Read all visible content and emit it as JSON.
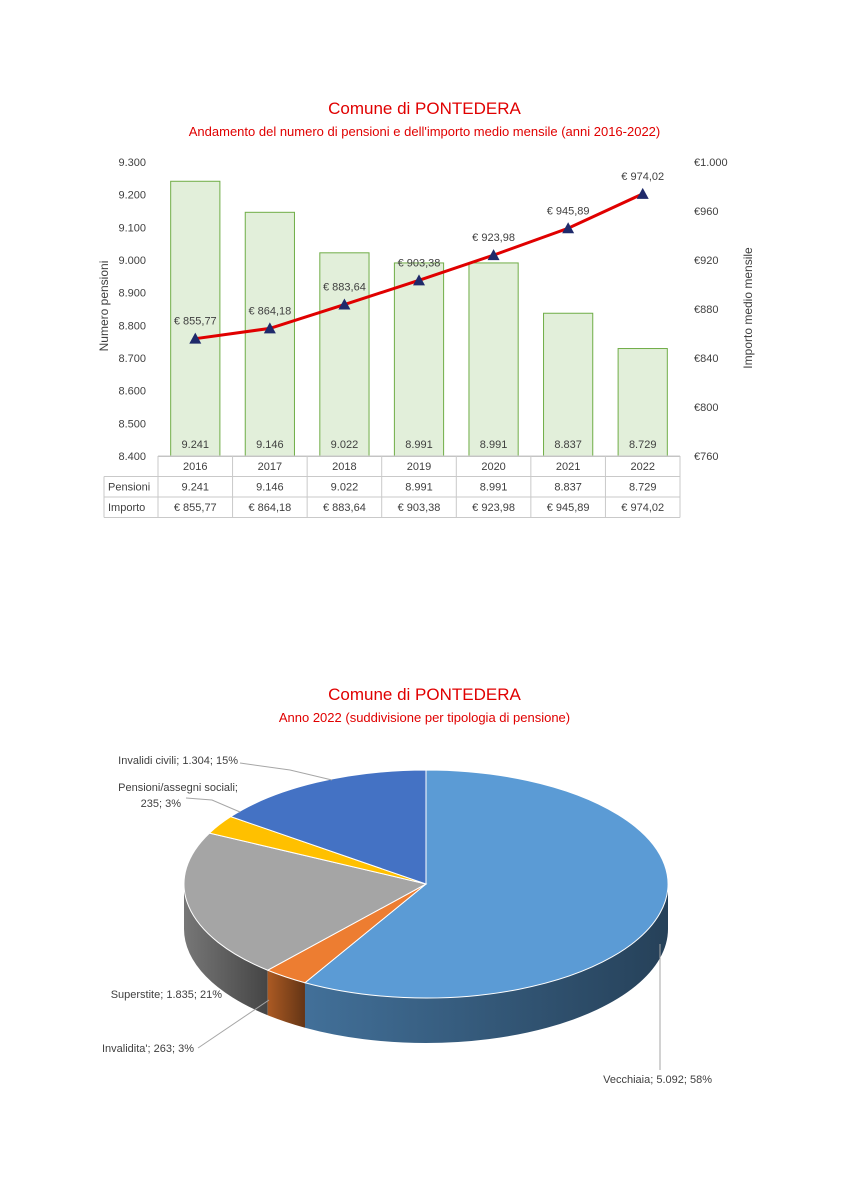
{
  "chart_data": [
    {
      "type": "bar",
      "title": "Comune di PONTEDERA",
      "subtitle": "Andamento del numero di pensioni e dell'importo medio mensile (anni 2016-2022)",
      "categories": [
        "2016",
        "2017",
        "2018",
        "2019",
        "2020",
        "2021",
        "2022"
      ],
      "ylabel": "Numero pensioni",
      "y2label": "Importo medio mensile",
      "ylim": [
        8400,
        9300
      ],
      "y2lim": [
        760,
        1000
      ],
      "yticks": [
        "8.400",
        "8.500",
        "8.600",
        "8.700",
        "8.800",
        "8.900",
        "9.000",
        "9.100",
        "9.200",
        "9.300"
      ],
      "y2ticks": [
        "€760",
        "€800",
        "€840",
        "€880",
        "€920",
        "€960",
        "€1.000"
      ],
      "grid": false,
      "legend": "data-table",
      "series": [
        {
          "name": "Pensioni",
          "type": "bar",
          "axis": "left",
          "values": [
            9241,
            9146,
            9022,
            8991,
            8991,
            8837,
            8729
          ],
          "labels": [
            "9.241",
            "9.146",
            "9.022",
            "8.991",
            "8.991",
            "8.837",
            "8.729"
          ],
          "fill": "#e2efda",
          "stroke": "#70ad47"
        },
        {
          "name": "Importo",
          "type": "line",
          "axis": "right",
          "values": [
            855.77,
            864.18,
            883.64,
            903.38,
            923.98,
            945.89,
            974.02
          ],
          "labels": [
            "€ 855,77",
            "€ 864,18",
            "€ 883,64",
            "€ 903,38",
            "€ 923,98",
            "€ 945,89",
            "€ 974,02"
          ],
          "line_color": "#e00000",
          "marker_color": "#1f2a6b"
        }
      ]
    },
    {
      "type": "pie",
      "title": "Comune di PONTEDERA",
      "subtitle": "Anno 2022 (suddivisione per tipologia di pensione)",
      "slices": [
        {
          "label": "Vecchiaia",
          "value": 5092,
          "percent": 58,
          "text": "Vecchiaia; 5.092; 58%",
          "color": "#5b9bd5"
        },
        {
          "label": "Invalidita'",
          "value": 263,
          "percent": 3,
          "text": "Invalidita'; 263; 3%",
          "color": "#ed7d31"
        },
        {
          "label": "Superstite",
          "value": 1835,
          "percent": 21,
          "text": "Superstite; 1.835; 21%",
          "color": "#a5a5a5"
        },
        {
          "label": "Pensioni/assegni sociali",
          "value": 235,
          "percent": 3,
          "text1": "Pensioni/assegni sociali;",
          "text2": "235; 3%",
          "color": "#ffc000"
        },
        {
          "label": "Invalidi civili",
          "value": 1304,
          "percent": 15,
          "text": "Invalidi civili; 1.304; 15%",
          "color": "#4472c4"
        }
      ]
    }
  ]
}
